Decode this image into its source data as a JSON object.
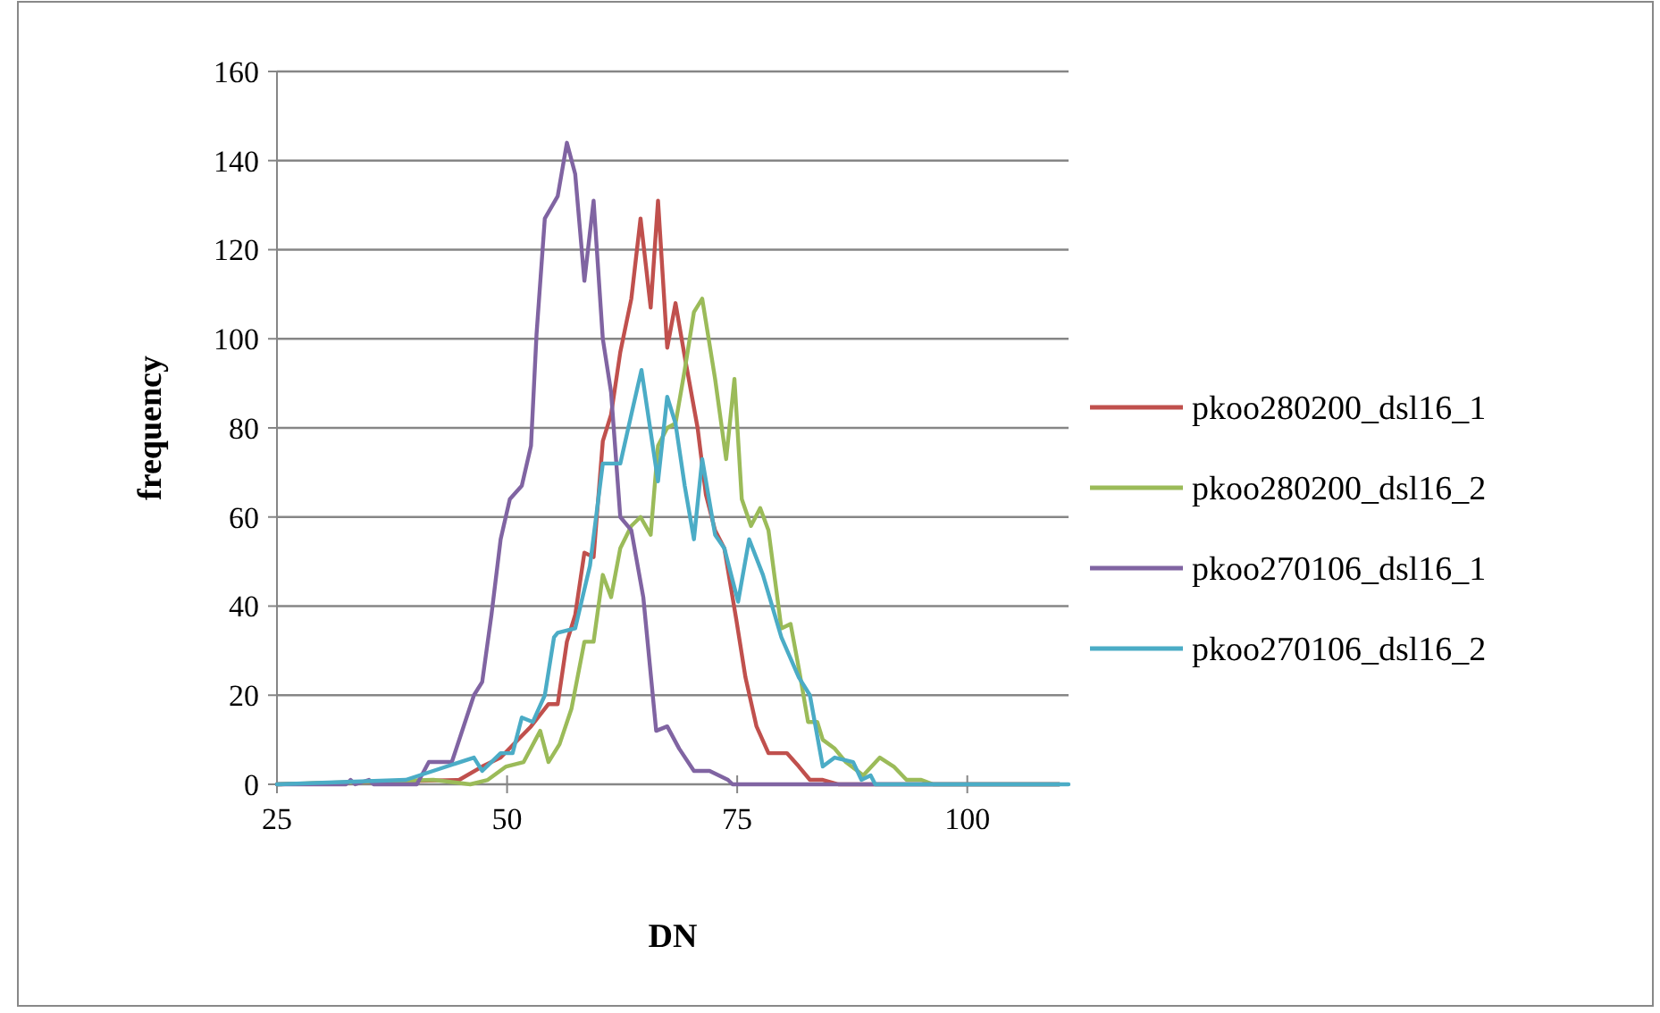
{
  "chart_data": {
    "type": "line",
    "xlabel": "DN",
    "ylabel": "frequency",
    "xlim": [
      25,
      111
    ],
    "xticks": [
      25,
      50,
      75,
      100
    ],
    "ylim": [
      0,
      160
    ],
    "yticks": [
      0,
      20,
      40,
      60,
      80,
      100,
      120,
      140,
      160
    ],
    "grid": "y",
    "legend": "right",
    "line_style": "solid",
    "series": [
      {
        "name": "pkoo280200_dsl16_1",
        "color": "#c0504d",
        "x": [
          25,
          44.8,
          47.3,
          49.3,
          52.6,
          54.5,
          55.5,
          56.5,
          57.4,
          58.4,
          59.4,
          60.4,
          61.3,
          62.3,
          63.5,
          64.5,
          65.6,
          66.4,
          67.4,
          68.3,
          69.3,
          70.7,
          71.6,
          72.6,
          73.6,
          74.9,
          75.9,
          77.1,
          78.4,
          80.4,
          81.7,
          82.9,
          84.3,
          86,
          110
        ],
        "values": [
          0,
          1,
          4,
          6,
          13,
          18,
          18,
          32,
          38,
          52,
          51,
          77,
          83,
          97,
          109,
          127,
          107,
          131,
          98,
          108,
          96,
          80,
          65,
          57,
          53,
          37,
          24,
          13,
          7,
          7,
          4,
          1,
          1,
          0,
          0
        ]
      },
      {
        "name": "pkoo280200_dsl16_2",
        "color": "#9bbb59",
        "x": [
          25,
          42,
          46,
          47.9,
          49.9,
          51.8,
          53.6,
          54.5,
          55.7,
          57,
          58.4,
          59.4,
          60.4,
          61.3,
          62.3,
          63.5,
          64.5,
          65.6,
          66.4,
          67.4,
          68.3,
          69.3,
          70.3,
          71.2,
          72.6,
          73.8,
          74.7,
          75.5,
          76.5,
          77.5,
          78.4,
          79.8,
          80.8,
          81.7,
          82.7,
          83.7,
          84.3,
          85.6,
          86.8,
          88.7,
          90.5,
          92,
          93.4,
          95,
          96.3,
          110
        ],
        "values": [
          0,
          1,
          0,
          1,
          4,
          5,
          12,
          5,
          9,
          17,
          32,
          32,
          47,
          42,
          53,
          58,
          60,
          56,
          76,
          80,
          81,
          93,
          106,
          109,
          91,
          73,
          91,
          64,
          58,
          62,
          57,
          35,
          36,
          26,
          14,
          14,
          10,
          8,
          5,
          2,
          6,
          4,
          1,
          1,
          0,
          0
        ]
      },
      {
        "name": "pkoo270106_dsl16_1",
        "color": "#8064a2",
        "x": [
          25,
          32.5,
          33,
          33.5,
          35,
          35.5,
          36,
          40.2,
          41.5,
          44,
          46.4,
          47.3,
          48.3,
          49.3,
          50.3,
          51.6,
          52.6,
          53.2,
          54.1,
          55.5,
          56.5,
          57.4,
          58.4,
          59.4,
          60.4,
          61.3,
          62.3,
          63.5,
          64.8,
          66.2,
          67.4,
          68.7,
          70.3,
          72,
          74,
          74.5,
          110
        ],
        "values": [
          0,
          0,
          1,
          0,
          1,
          0,
          0,
          0,
          5,
          5,
          20,
          23,
          38,
          55,
          64,
          67,
          76,
          101,
          127,
          132,
          144,
          137,
          113,
          131,
          100,
          88,
          60,
          57,
          42,
          12,
          13,
          8,
          3,
          3,
          1,
          0,
          0
        ]
      },
      {
        "name": "pkoo270106_dsl16_2",
        "color": "#4bacc6",
        "x": [
          25,
          39,
          46.4,
          47.3,
          49.3,
          50.6,
          51.6,
          52.8,
          54.1,
          55.1,
          55.5,
          57.4,
          59,
          60.4,
          62.3,
          63.5,
          64.6,
          66.4,
          67.4,
          68.3,
          69.3,
          70.3,
          71.2,
          72.6,
          73.6,
          75.1,
          76.3,
          77.8,
          79.8,
          81.7,
          82.9,
          84.3,
          85.6,
          87.6,
          88.5,
          89.5,
          90,
          111
        ],
        "values": [
          0,
          1,
          6,
          3,
          7,
          7,
          15,
          14,
          20,
          33,
          34,
          35,
          49,
          72,
          72,
          83,
          93,
          68,
          87,
          81,
          67,
          55,
          73,
          56,
          53,
          41,
          55,
          47,
          33,
          24,
          20,
          4,
          6,
          5,
          1,
          2,
          0,
          0
        ]
      }
    ]
  }
}
